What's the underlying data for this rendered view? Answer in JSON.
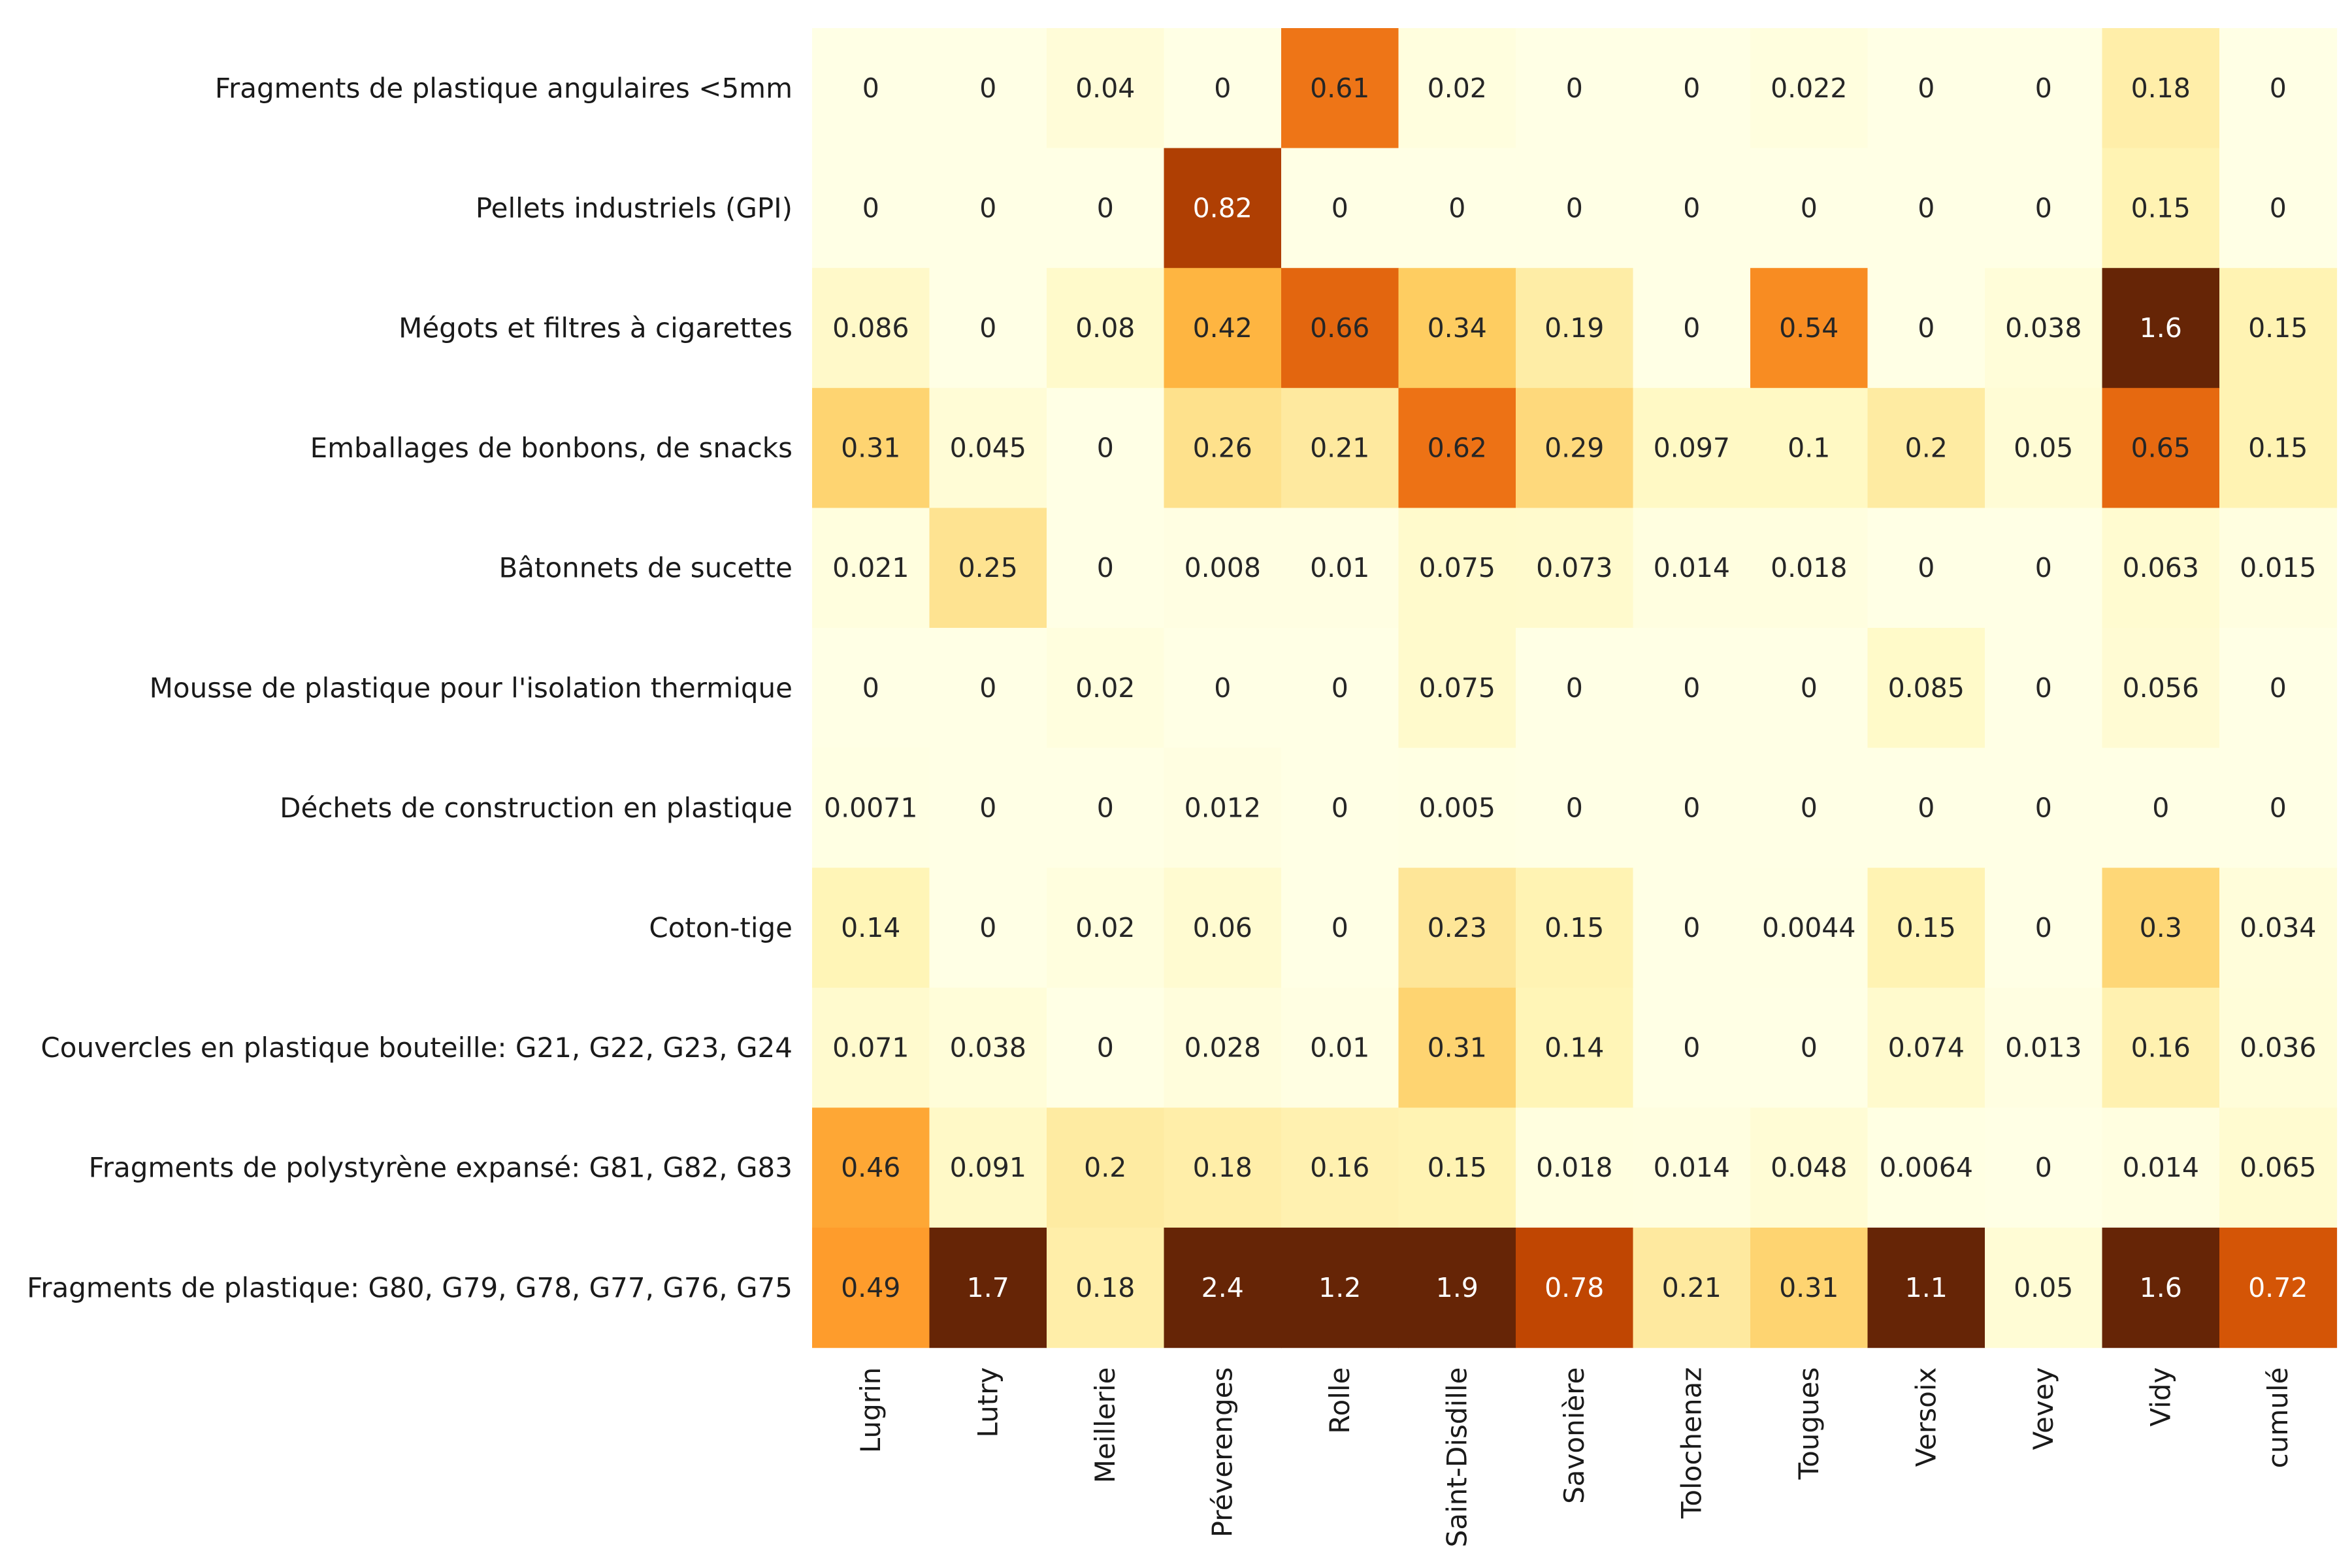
{
  "chart_data": {
    "type": "heatmap",
    "title": "",
    "xlabel": "",
    "ylabel": "",
    "colormap": "YlOrBr",
    "color_scale": [
      0,
      1
    ],
    "colorbar": false,
    "grid": false,
    "rows": [
      "Fragments de plastique angulaires <5mm",
      "Pellets industriels (GPI)",
      "Mégots et filtres à cigarettes",
      "Emballages de bonbons, de snacks",
      "Bâtonnets de sucette",
      "Mousse de plastique pour l'isolation thermique",
      "Déchets de construction en plastique",
      "Coton-tige",
      "Couvercles en plastique bouteille:  G21, G22, G23, G24",
      "Fragments de polystyrène expansé: G81, G82, G83",
      "Fragments de plastique: G80, G79, G78, G77, G76, G75"
    ],
    "columns": [
      "Lugrin",
      "Lutry",
      "Meillerie",
      "Préverenges",
      "Rolle",
      "Saint-Disdille",
      "Savonière",
      "Tolochenaz",
      "Tougues",
      "Versoix",
      "Vevey",
      "Vidy",
      "cumulé"
    ],
    "values": [
      [
        0.0,
        0.0,
        0.04,
        0.0,
        0.61,
        0.02,
        0.0,
        0.0,
        0.022,
        0.0,
        0.0,
        0.18,
        0.0
      ],
      [
        0.0,
        0.0,
        0.0,
        0.82,
        0.0,
        0.0,
        0.0,
        0.0,
        0.0,
        0.0,
        0.0,
        0.15,
        0.0
      ],
      [
        0.086,
        0.0,
        0.08,
        0.42,
        0.66,
        0.34,
        0.19,
        0.0,
        0.54,
        0.0,
        0.038,
        1.6,
        0.15
      ],
      [
        0.31,
        0.045,
        0.0,
        0.26,
        0.21,
        0.62,
        0.29,
        0.097,
        0.1,
        0.2,
        0.05,
        0.65,
        0.15
      ],
      [
        0.021,
        0.25,
        0.0,
        0.008,
        0.01,
        0.075,
        0.073,
        0.014,
        0.018,
        0.0,
        0.0,
        0.063,
        0.015
      ],
      [
        0.0,
        0.0,
        0.02,
        0.0,
        0.0,
        0.075,
        0.0,
        0.0,
        0.0,
        0.085,
        0.0,
        0.056,
        0.0
      ],
      [
        0.0071,
        0.0,
        0.0,
        0.012,
        0.0,
        0.005,
        0.0,
        0.0,
        0.0,
        0.0,
        0.0,
        0.0,
        0.0
      ],
      [
        0.14,
        0.0,
        0.02,
        0.06,
        0.0,
        0.23,
        0.15,
        0.0,
        0.0044,
        0.15,
        0.0,
        0.3,
        0.034
      ],
      [
        0.071,
        0.038,
        0.0,
        0.028,
        0.01,
        0.31,
        0.14,
        0.0,
        0.0,
        0.074,
        0.013,
        0.16,
        0.036
      ],
      [
        0.46,
        0.091,
        0.2,
        0.18,
        0.16,
        0.15,
        0.018,
        0.014,
        0.048,
        0.0064,
        0.0,
        0.014,
        0.065
      ],
      [
        0.49,
        1.7,
        0.18,
        2.4,
        1.2,
        1.9,
        0.78,
        0.21,
        0.31,
        1.1,
        0.05,
        1.6,
        0.72
      ]
    ]
  }
}
